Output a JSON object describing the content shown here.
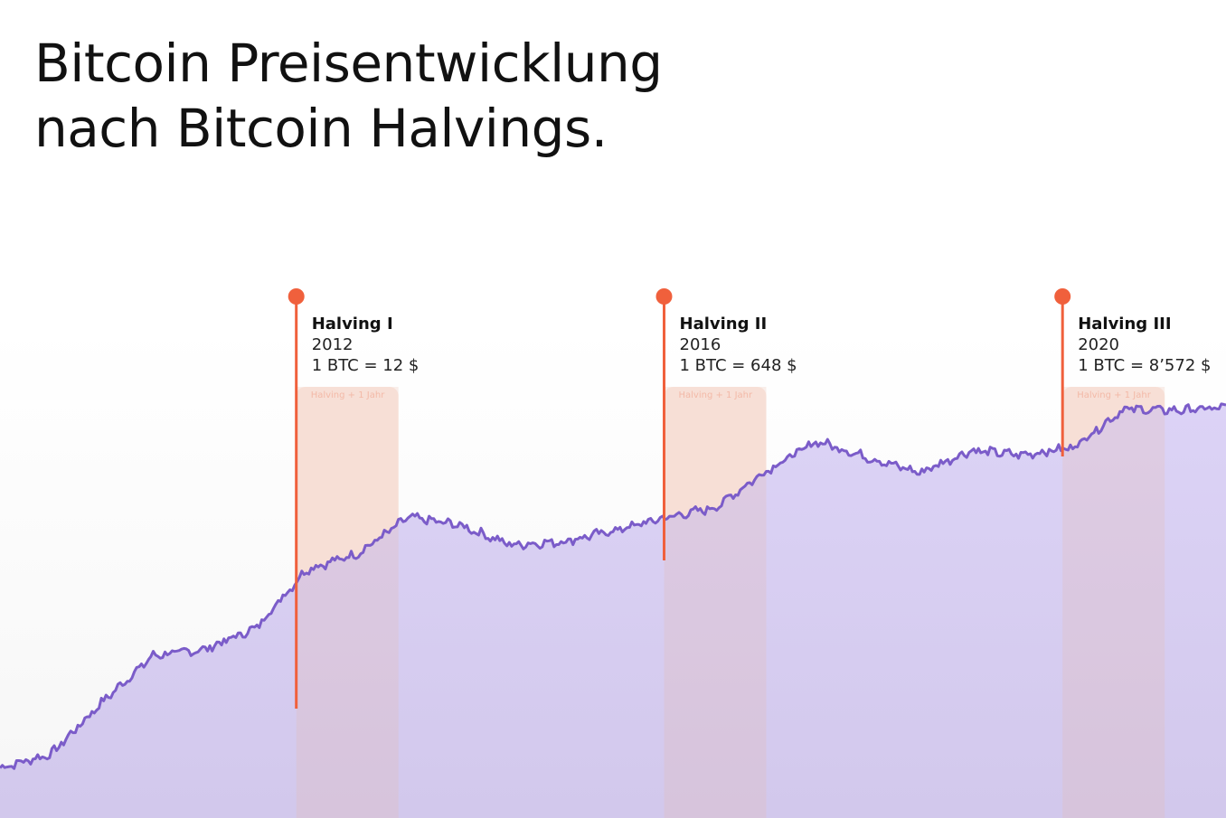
{
  "title_line1": "Bitcoin Preisentwicklung",
  "title_line2": "nach Bitcoin Halvings.",
  "colors": {
    "line": "#7b5cc9",
    "area": "#dcd2f5",
    "marker": "#f0603c",
    "band": "#fbe8e1",
    "band_label": "#f3b9a7"
  },
  "chart_data": {
    "type": "area",
    "x_range": [
      "2010",
      "2022"
    ],
    "y_scale": "log",
    "grid": false,
    "x": [
      "2010",
      "2010.5",
      "2011",
      "2011.5",
      "2012",
      "2012.5",
      "2013",
      "2013.5",
      "2014",
      "2014.5",
      "2015",
      "2015.5",
      "2016",
      "2016.5",
      "2017",
      "2017.5",
      "2018",
      "2018.5",
      "2019",
      "2019.5",
      "2020",
      "2020.5",
      "2021",
      "2021.5",
      "2022"
    ],
    "values": [
      0.06,
      0.1,
      0.7,
      4,
      5,
      11,
      100,
      180,
      700,
      520,
      250,
      280,
      420,
      680,
      1000,
      4000,
      12000,
      6500,
      3700,
      8500,
      7200,
      9500,
      40000,
      38000,
      42000
    ],
    "halvings": [
      {
        "title": "Halving I",
        "year": "2012",
        "price": "1 BTC = 12 $",
        "band_label": "Halving + 1 Jahr"
      },
      {
        "title": "Halving II",
        "year": "2016",
        "price": "1 BTC = 648 $",
        "band_label": "Halving + 1 Jahr"
      },
      {
        "title": "Halving III",
        "year": "2020",
        "price": "1 BTC = 8’572 $",
        "band_label": "Halving + 1 Jahr"
      }
    ]
  }
}
